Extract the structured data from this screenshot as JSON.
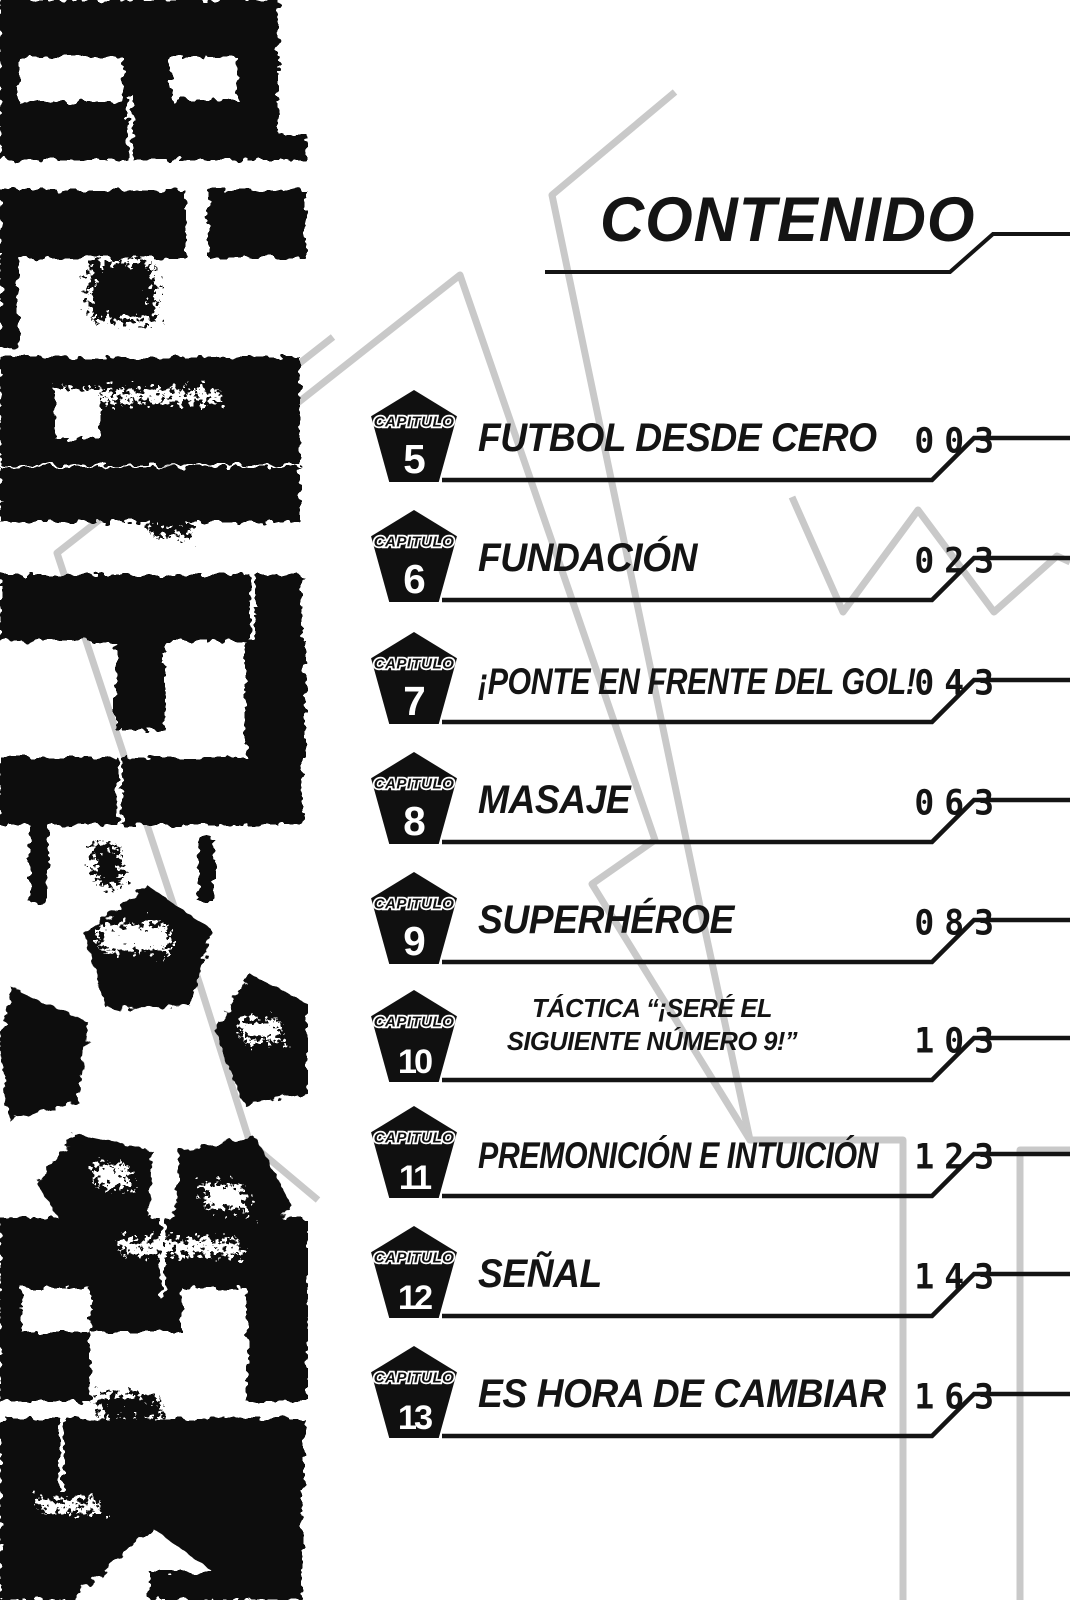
{
  "page": {
    "title": "CONTENIDO"
  },
  "badge": {
    "label": "CAPITULO"
  },
  "chapters": [
    {
      "number": "5",
      "title_lines": [
        "FUTBOL DESDE CERO"
      ],
      "page": "003"
    },
    {
      "number": "6",
      "title_lines": [
        "FUNDACIÓN"
      ],
      "page": "023"
    },
    {
      "number": "7",
      "title_lines": [
        "¡PONTE EN FRENTE DEL GOL!"
      ],
      "page": "043"
    },
    {
      "number": "8",
      "title_lines": [
        "MASAJE"
      ],
      "page": "063"
    },
    {
      "number": "9",
      "title_lines": [
        "SUPERHÉROE"
      ],
      "page": "083"
    },
    {
      "number": "10",
      "title_lines": [
        "TÁCTICA “¡SERÉ EL",
        "SIGUIENTE NÚMERO 9!”"
      ],
      "page": "103"
    },
    {
      "number": "11",
      "title_lines": [
        "PREMONICIÓN E INTUICIÓN"
      ],
      "page": "123"
    },
    {
      "number": "12",
      "title_lines": [
        "SEÑAL"
      ],
      "page": "143"
    },
    {
      "number": "13",
      "title_lines": [
        "ES HORA DE CAMBIAR"
      ],
      "page": "163"
    }
  ],
  "colors": {
    "line_gray": "#c9c9c9",
    "ink": "#141414"
  }
}
